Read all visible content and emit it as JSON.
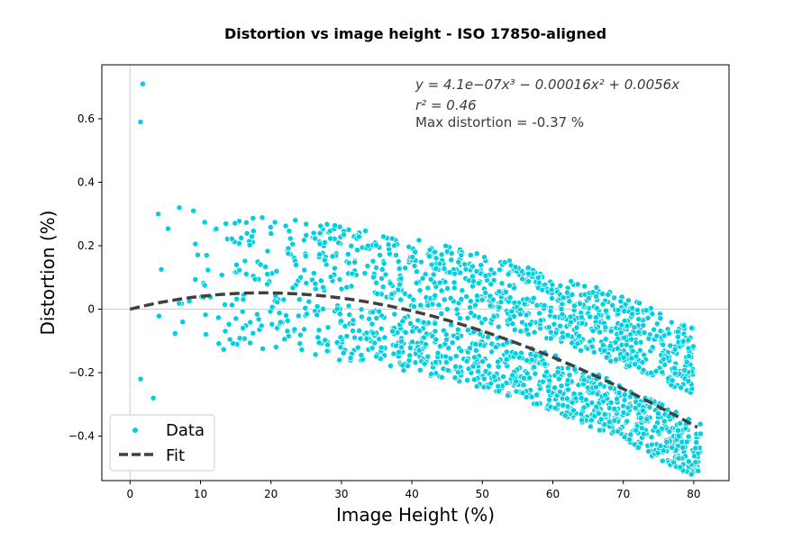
{
  "chart_data": {
    "type": "scatter",
    "title": "Distortion vs image height - ISO 17850-aligned",
    "xlabel": "Image Height (%)",
    "ylabel": "Distortion (%)",
    "xlim": [
      -4,
      85
    ],
    "ylim": [
      -0.54,
      0.77
    ],
    "xticks": [
      0,
      10,
      20,
      30,
      40,
      50,
      60,
      70,
      80
    ],
    "yticks": [
      -0.4,
      -0.2,
      0.0,
      0.2,
      0.4,
      0.6
    ],
    "ytick_labels": [
      "−0.4",
      "−0.2",
      "0",
      "0.2",
      "0.4",
      "0.6"
    ],
    "grid": false,
    "reference_lines": {
      "x": 0,
      "y": 0,
      "color": "#cccccc"
    },
    "legend_position": "lower-left",
    "colors": {
      "data": "#00cfe0",
      "data_edge": "#ffffff",
      "fit": "#404040"
    },
    "series": [
      {
        "name": "Data",
        "kind": "scatter",
        "outliers": [
          {
            "x": 1.8,
            "y": 0.71
          },
          {
            "x": 1.5,
            "y": 0.59
          },
          {
            "x": 1.5,
            "y": -0.22
          },
          {
            "x": 3.3,
            "y": -0.28
          },
          {
            "x": 4.0,
            "y": 0.3
          },
          {
            "x": 7.0,
            "y": 0.32
          },
          {
            "x": 9.0,
            "y": 0.31
          }
        ],
        "upper_band": {
          "x_start": 3,
          "x_end": 80,
          "y_at": [
            [
              3,
              0.17
            ],
            [
              15,
              0.19
            ],
            [
              30,
              0.16
            ],
            [
              45,
              0.09
            ],
            [
              60,
              0.01
            ],
            [
              70,
              -0.07
            ],
            [
              80,
              -0.16
            ]
          ],
          "spread": 0.11
        },
        "lower_band": {
          "x_start": 3,
          "x_end": 81,
          "y_at": [
            [
              3,
              -0.04
            ],
            [
              20,
              -0.04
            ],
            [
              35,
              -0.09
            ],
            [
              50,
              -0.16
            ],
            [
              60,
              -0.23
            ],
            [
              70,
              -0.33
            ],
            [
              81,
              -0.45
            ]
          ],
          "spread": 0.09
        }
      },
      {
        "name": "Fit",
        "kind": "line",
        "style": "dashed",
        "coefficients": {
          "a3": 4.1e-07,
          "a2": -0.00016,
          "a1": 0.0056,
          "a0": 0
        },
        "x_range": [
          0,
          80.5
        ]
      }
    ],
    "annotations": {
      "equation": "y = 4.1e−07x³ − 0.00016x² + 0.0056x",
      "r2": "r² = 0.46",
      "max_distortion": "Max distortion = -0.37 %"
    }
  }
}
